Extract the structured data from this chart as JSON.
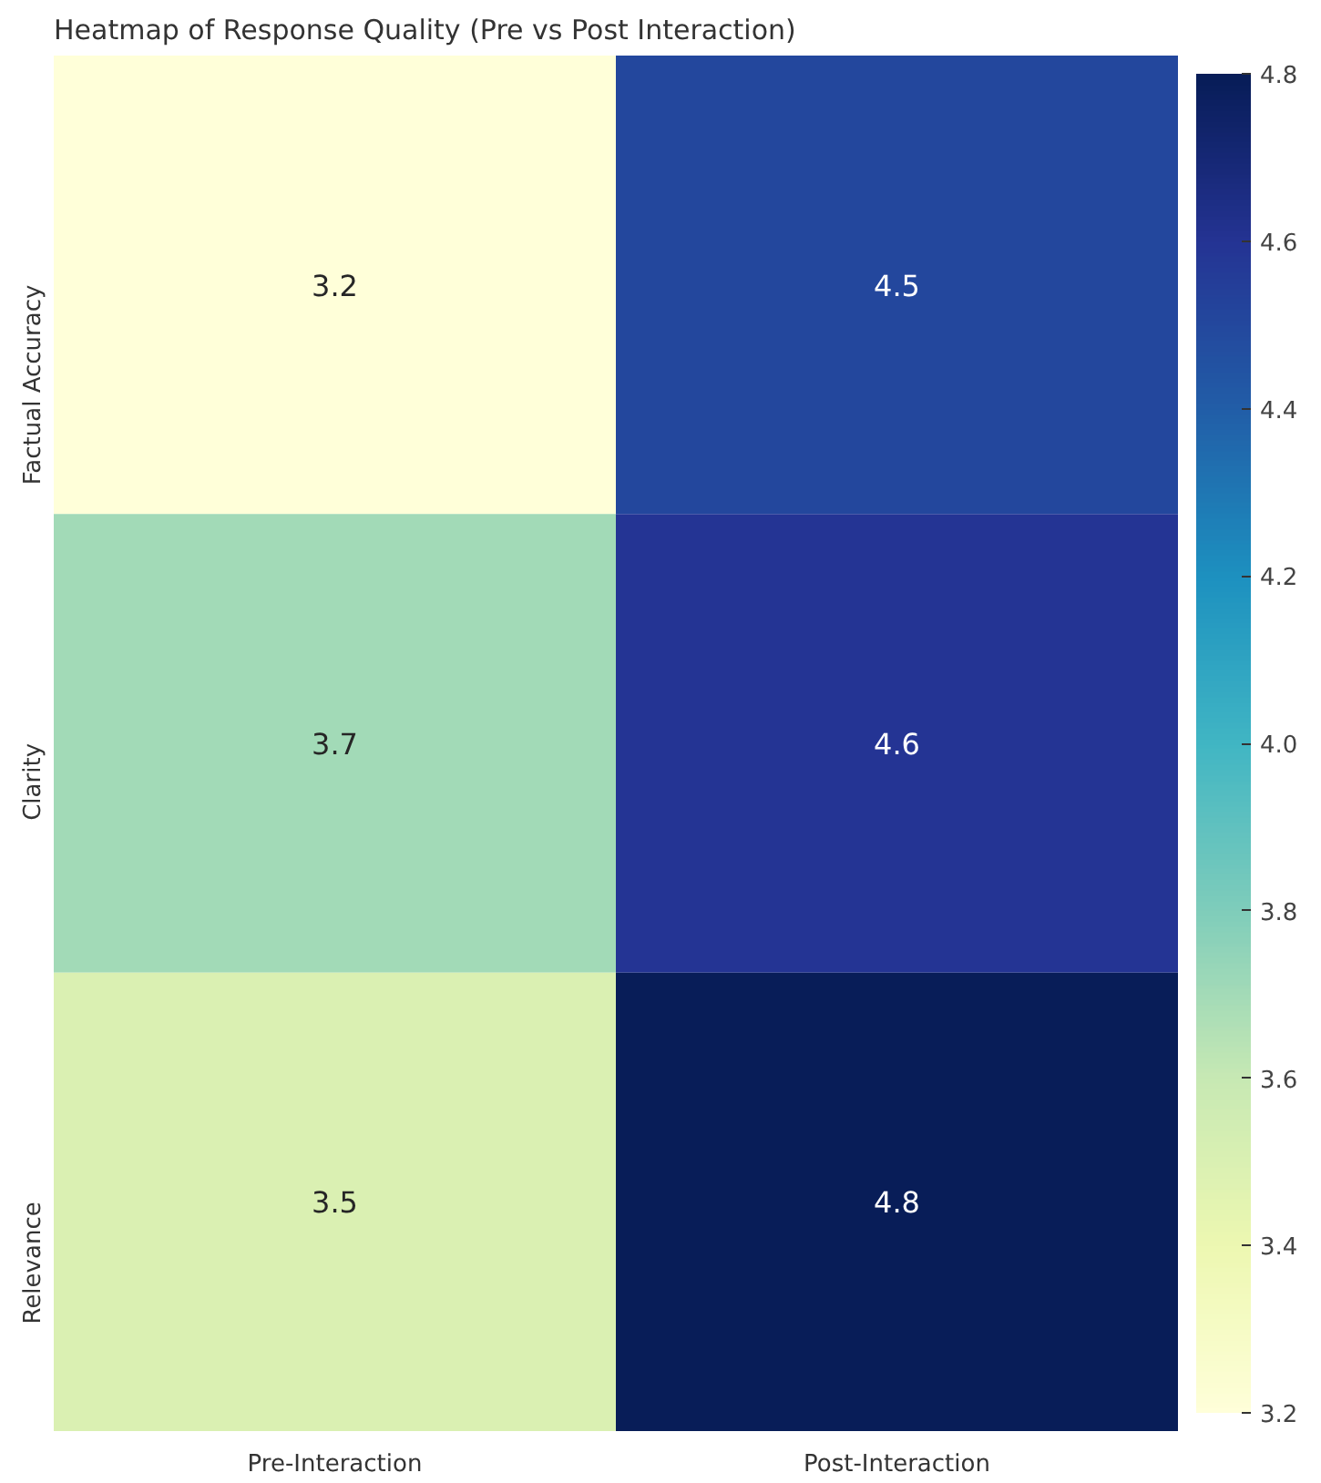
{
  "chart_data": {
    "type": "heatmap",
    "title": "Heatmap of Response Quality (Pre vs Post Interaction)",
    "categories": [
      "Pre-Interaction",
      "Post-Interaction"
    ],
    "y_categories": [
      "Factual Accuracy",
      "Clarity",
      "Relevance"
    ],
    "cells": [
      [
        3.2,
        4.5
      ],
      [
        3.7,
        4.6
      ],
      [
        3.5,
        4.8
      ]
    ],
    "data_labels": true,
    "clim": [
      3.2,
      4.8
    ],
    "cticks": [
      3.2,
      3.4,
      3.6,
      3.8,
      {
        "value": 4.0,
        "label": "4.0"
      },
      4.2,
      4.4,
      4.6,
      4.8
    ]
  }
}
